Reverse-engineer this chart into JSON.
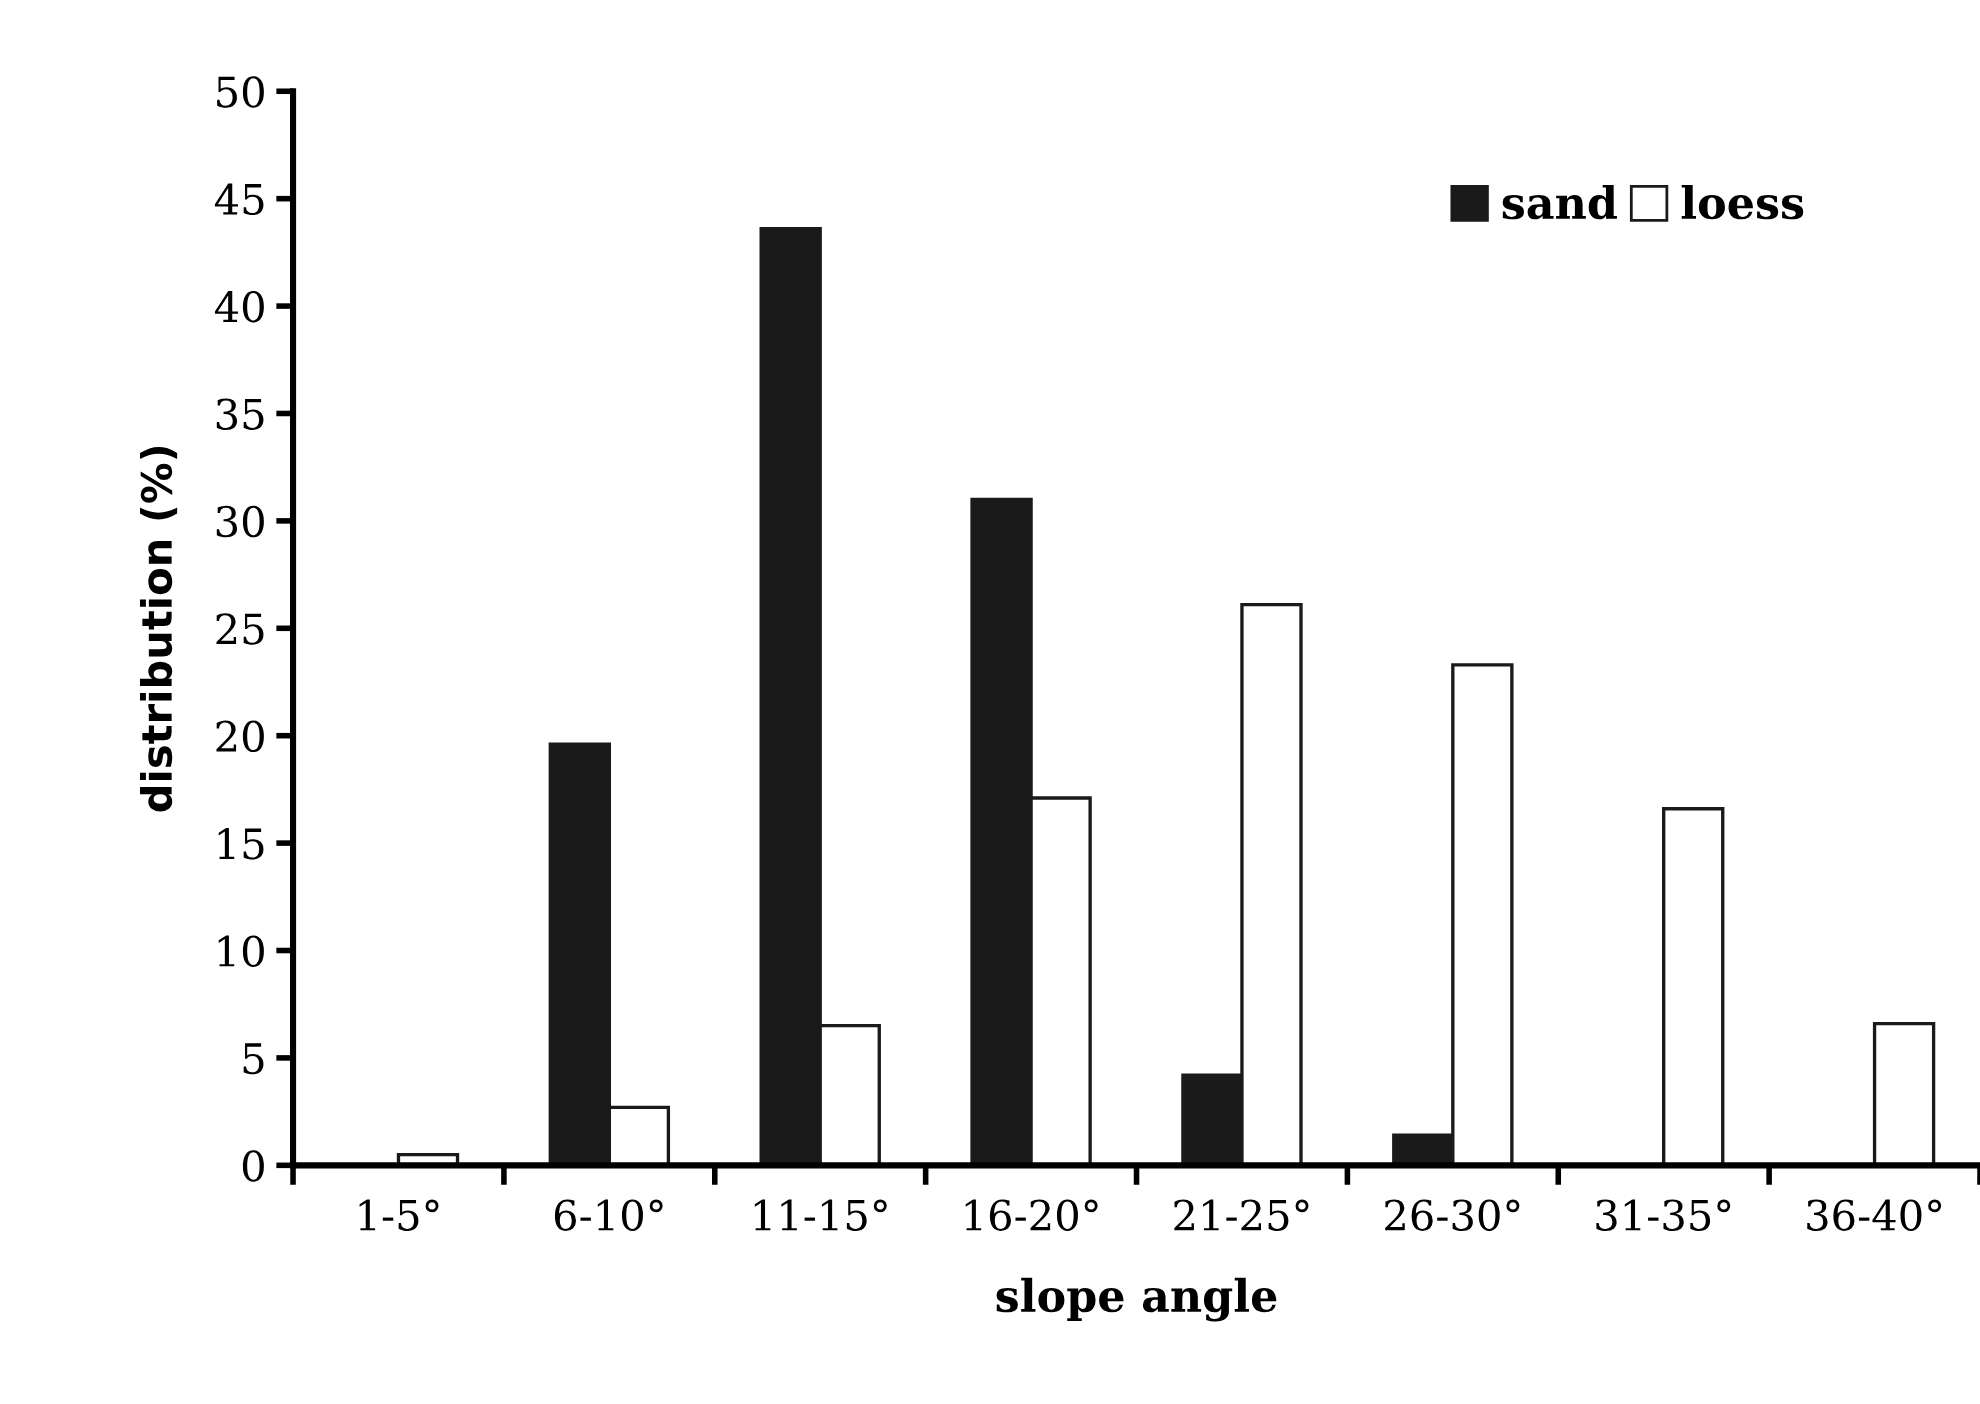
{
  "chart_data": {
    "type": "bar",
    "xlabel": "slope angle",
    "ylabel": "distribution (%)",
    "categories": [
      "1-5°",
      "6-10°",
      "11-15°",
      "16-20°",
      "21-25°",
      "26-30°",
      "31-35°",
      "36-40°"
    ],
    "series": [
      {
        "name": "sand",
        "color": "#1a1a1a",
        "values": [
          0,
          19.6,
          43.6,
          31.0,
          4.2,
          1.4,
          0,
          0
        ]
      },
      {
        "name": "loess",
        "color": "#ffffff",
        "values": [
          0.5,
          2.7,
          6.5,
          17.1,
          26.1,
          23.3,
          16.6,
          6.6
        ]
      }
    ],
    "ylim": [
      0,
      50
    ],
    "yticks": [
      0,
      5,
      10,
      15,
      20,
      25,
      30,
      35,
      40,
      45,
      50
    ],
    "grid": false,
    "legend": "top right"
  }
}
